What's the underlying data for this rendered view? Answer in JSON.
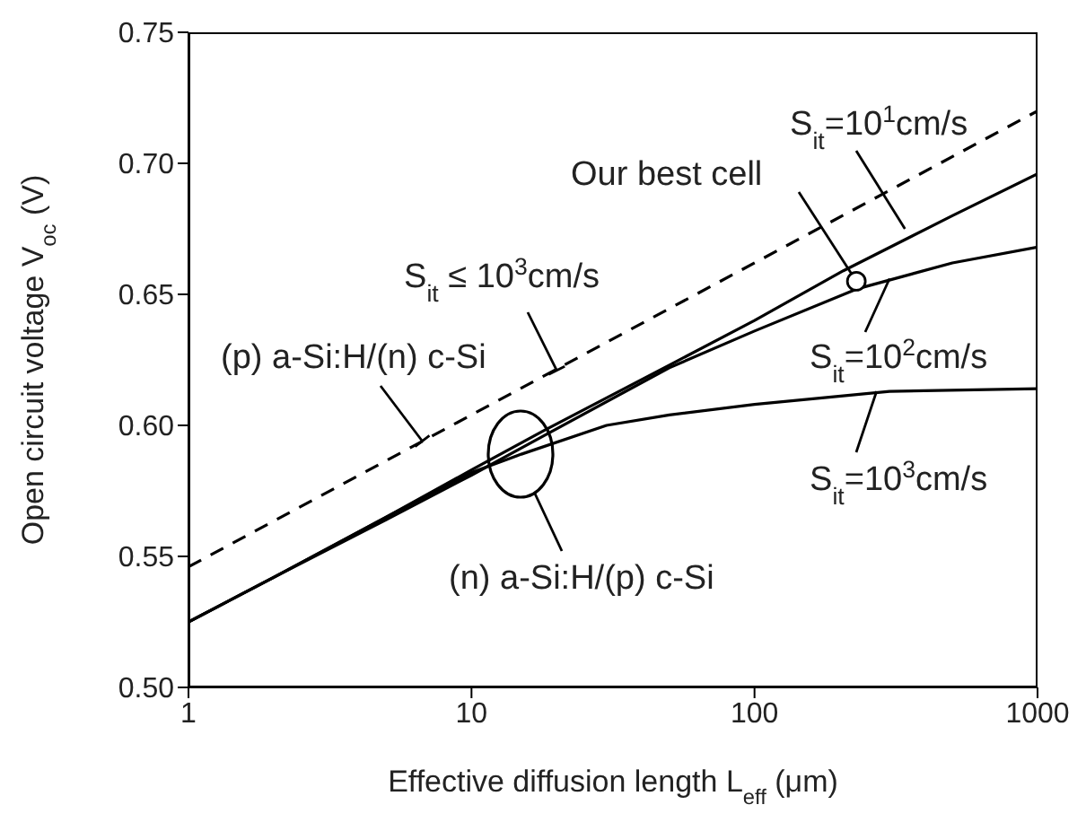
{
  "chart_data": {
    "type": "line",
    "xlabel": "Effective diffusion length L$_{eff}$ (μm)",
    "ylabel": "Open circuit voltage V$_{oc}$ (V)",
    "log": "x",
    "xlim": [
      1,
      1000
    ],
    "xticks": [
      1,
      10,
      100,
      1000
    ],
    "ylim": [
      0.5,
      0.75
    ],
    "yticks": [
      {
        "value": 0.5,
        "label": "0.50"
      },
      {
        "value": 0.55,
        "label": "0.55"
      },
      {
        "value": 0.6,
        "label": "0.60"
      },
      {
        "value": 0.65,
        "label": "0.65"
      },
      {
        "value": 0.7,
        "label": "0.70"
      },
      {
        "value": 0.75,
        "label": "0.75"
      }
    ],
    "grid": false,
    "marker": "none",
    "series": [
      {
        "type": "line",
        "color": "#000000",
        "line_style": "dashed",
        "x": [
          1,
          1000
        ],
        "values": [
          0.546,
          0.72
        ]
      },
      {
        "type": "line",
        "color": "#000000",
        "line_style": "solid",
        "x": [
          1,
          2,
          5,
          10,
          18,
          50,
          100,
          206,
          500,
          1000
        ],
        "values": [
          0.525,
          0.542,
          0.565,
          0.583,
          0.598,
          0.623,
          0.64,
          0.659,
          0.68,
          0.696
        ]
      },
      {
        "type": "line",
        "color": "#000000",
        "line_style": "solid",
        "x": [
          1,
          2,
          5,
          10,
          18,
          50,
          100,
          229,
          500,
          1000
        ],
        "values": [
          0.525,
          0.542,
          0.564,
          0.581,
          0.596,
          0.622,
          0.636,
          0.652,
          0.662,
          0.668
        ]
      },
      {
        "type": "line",
        "color": "#000000",
        "line_style": "solid",
        "x": [
          1,
          2,
          5,
          10,
          15,
          30,
          50,
          100,
          300,
          1000
        ],
        "values": [
          0.525,
          0.542,
          0.565,
          0.582,
          0.589,
          0.6,
          0.604,
          0.608,
          0.613,
          0.614
        ]
      },
      {
        "type": "scatter",
        "color": "#000000",
        "marker": "circle",
        "x": [
          229
        ],
        "values": [
          0.655
        ]
      }
    ],
    "annotations": [
      {
        "text": "S$_{it}$=10$^{1}$cm/s",
        "x": 340,
        "y": 0.675
      },
      {
        "text": "Our best cell",
        "x": 229,
        "y": 0.655
      },
      {
        "text": "S$_{it}$ ≤ 10$^{3}$cm/s",
        "x": 20,
        "y": 0.621
      },
      {
        "text": "(p) a-Si:H/(n) c-Si",
        "x": 6.7,
        "y": 0.594
      },
      {
        "text": "S$_{it}$=10$^{2}$cm/s",
        "x": 300,
        "y": 0.656
      },
      {
        "text": "S$_{it}$=10$^{3}$cm/s",
        "x": 270,
        "y": 0.613
      },
      "(n) a-Si:H/(p) c-Si"
    ]
  }
}
